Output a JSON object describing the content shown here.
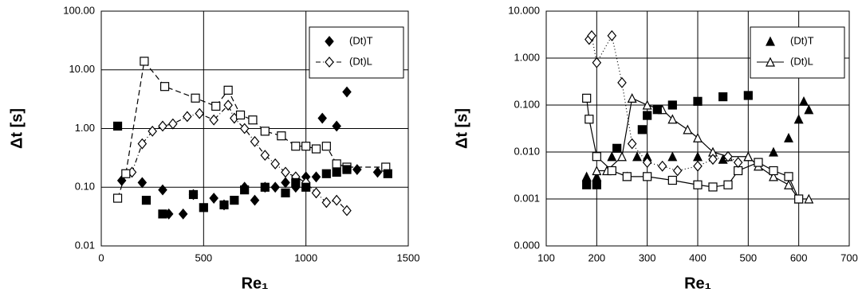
{
  "chart_data": [
    {
      "type": "scatter",
      "x_label": "Re₁",
      "y_label": "Δt [s]",
      "log_y": true,
      "grid": true,
      "legend": "upper right",
      "color": "#000000",
      "xlim": [
        0,
        1500
      ],
      "xticks": [
        0,
        500,
        1000,
        1500
      ],
      "ylim": [
        0.01,
        100
      ],
      "yticks": [
        {
          "value": 0.01,
          "label": "0.01"
        },
        {
          "value": 0.1,
          "label": "0.10"
        },
        {
          "value": 1,
          "label": "1.00"
        },
        {
          "value": 10,
          "label": "10.00"
        },
        {
          "value": 100,
          "label": "100.00"
        }
      ],
      "series": [
        {
          "name": "(Dt)T",
          "marker": "diamond",
          "filled": true,
          "line": "none",
          "x": [
            100,
            200,
            300,
            330,
            400,
            450,
            550,
            600,
            700,
            750,
            800,
            850,
            900,
            950,
            1000,
            1050,
            1080,
            1150,
            1200,
            1250,
            1350
          ],
          "values": [
            0.13,
            0.12,
            0.09,
            0.035,
            0.035,
            0.075,
            0.065,
            0.05,
            0.1,
            0.06,
            0.1,
            0.1,
            0.12,
            0.1,
            0.15,
            0.15,
            1.5,
            1.1,
            4.2,
            0.2,
            0.18
          ]
        },
        {
          "name": "(Dt)L",
          "marker": "diamond",
          "filled": false,
          "line": "dashdot",
          "x": [
            150,
            200,
            250,
            300,
            350,
            420,
            480,
            550,
            620,
            650,
            700,
            750,
            800,
            850,
            900,
            950,
            1000,
            1050,
            1100,
            1150,
            1200
          ],
          "values": [
            0.18,
            0.55,
            0.9,
            1.1,
            1.2,
            1.6,
            1.8,
            1.4,
            2.5,
            1.5,
            1.0,
            0.6,
            0.35,
            0.25,
            0.18,
            0.15,
            0.12,
            0.08,
            0.055,
            0.06,
            0.04
          ]
        },
        {
          "marker": "square",
          "filled": false,
          "line": "dashed",
          "x": [
            80,
            120,
            210,
            310,
            460,
            560,
            620,
            680,
            740,
            800,
            880,
            950,
            1000,
            1050,
            1100,
            1150,
            1200,
            1390
          ],
          "values": [
            0.065,
            0.17,
            14,
            5.2,
            3.3,
            2.4,
            4.5,
            1.7,
            1.4,
            0.9,
            0.75,
            0.5,
            0.5,
            0.45,
            0.5,
            0.25,
            0.22,
            0.22
          ]
        },
        {
          "marker": "square",
          "filled": true,
          "line": "none",
          "x": [
            80,
            220,
            300,
            450,
            500,
            600,
            650,
            700,
            800,
            900,
            950,
            1000,
            1100,
            1150,
            1200,
            1400
          ],
          "values": [
            1.1,
            0.06,
            0.035,
            0.075,
            0.045,
            0.05,
            0.06,
            0.09,
            0.1,
            0.08,
            0.12,
            0.1,
            0.17,
            0.18,
            0.2,
            0.17
          ]
        }
      ]
    },
    {
      "type": "scatter",
      "x_label": "Re₁",
      "y_label": "Δt [s]",
      "log_y": true,
      "grid": true,
      "legend": "upper right",
      "color": "#000000",
      "xlim": [
        100,
        700
      ],
      "xticks": [
        100,
        200,
        300,
        400,
        500,
        600,
        700
      ],
      "ylim": [
        0.0001,
        10
      ],
      "yticks": [
        {
          "value": 0.0001,
          "label": "0.000"
        },
        {
          "value": 0.001,
          "label": "0.001"
        },
        {
          "value": 0.01,
          "label": "0.010"
        },
        {
          "value": 0.1,
          "label": "0.100"
        },
        {
          "value": 1,
          "label": "1.000"
        },
        {
          "value": 10,
          "label": "10.000"
        }
      ],
      "series": [
        {
          "name": "(Dt)T",
          "marker": "triangle",
          "filled": true,
          "line": "none",
          "x": [
            180,
            200,
            230,
            260,
            280,
            300,
            350,
            400,
            450,
            500,
            550,
            580,
            600,
            610,
            620
          ],
          "values": [
            0.003,
            0.003,
            0.008,
            0.003,
            0.008,
            0.008,
            0.008,
            0.008,
            0.007,
            0.008,
            0.01,
            0.02,
            0.05,
            0.12,
            0.08
          ]
        },
        {
          "name": "(Dt)L",
          "marker": "triangle",
          "filled": false,
          "line": "solid",
          "x": [
            200,
            220,
            250,
            270,
            300,
            330,
            350,
            380,
            400,
            430,
            460,
            500,
            520,
            550,
            580,
            600,
            620
          ],
          "values": [
            0.004,
            0.004,
            0.008,
            0.14,
            0.1,
            0.08,
            0.05,
            0.03,
            0.02,
            0.01,
            0.008,
            0.008,
            0.005,
            0.003,
            0.002,
            0.001,
            0.001
          ]
        },
        {
          "marker": "square",
          "filled": true,
          "line": "none",
          "x": [
            180,
            200,
            240,
            290,
            300,
            320,
            350,
            400,
            450,
            500
          ],
          "values": [
            0.002,
            0.002,
            0.012,
            0.03,
            0.06,
            0.08,
            0.1,
            0.12,
            0.15,
            0.16
          ]
        },
        {
          "marker": "square",
          "filled": false,
          "line": "solid",
          "x": [
            180,
            185,
            200,
            230,
            260,
            300,
            350,
            400,
            430,
            460,
            480,
            520,
            550,
            580,
            600
          ],
          "values": [
            0.14,
            0.05,
            0.008,
            0.004,
            0.003,
            0.003,
            0.0025,
            0.002,
            0.0018,
            0.002,
            0.004,
            0.006,
            0.004,
            0.003,
            0.001
          ]
        },
        {
          "marker": "diamond",
          "filled": false,
          "line": "dotted",
          "x": [
            185,
            190,
            200,
            230,
            250,
            270,
            300,
            330,
            360,
            400,
            430,
            460,
            480
          ],
          "values": [
            2.5,
            3,
            0.8,
            3,
            0.3,
            0.015,
            0.006,
            0.005,
            0.004,
            0.005,
            0.007,
            0.008,
            0.006
          ]
        }
      ]
    }
  ]
}
